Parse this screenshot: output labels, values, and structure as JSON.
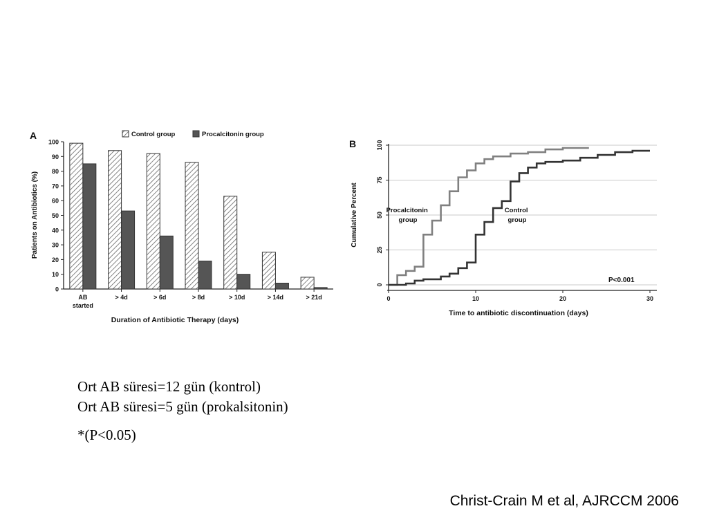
{
  "chart_data": [
    {
      "panel_label": "A",
      "type": "bar",
      "title": "",
      "xlabel": "Duration of Antibiotic Therapy (days)",
      "ylabel": "Patients on Antibiotics (%)",
      "ylim": [
        0,
        100
      ],
      "yticks": [
        0,
        10,
        20,
        30,
        40,
        50,
        60,
        70,
        80,
        90,
        100
      ],
      "categories": [
        "AB started",
        "> 4d",
        "> 6d",
        "> 8d",
        "> 10d",
        "> 14d",
        "> 21d"
      ],
      "legend_position": "top",
      "series": [
        {
          "name": "Control group",
          "pattern": "hatched",
          "color": "#ffffff",
          "values": [
            99,
            94,
            92,
            86,
            63,
            25,
            8
          ]
        },
        {
          "name": "Procalcitonin group",
          "pattern": "solid",
          "color": "#555555",
          "values": [
            85,
            53,
            36,
            19,
            10,
            4,
            1
          ]
        }
      ]
    },
    {
      "panel_label": "B",
      "type": "line",
      "title": "",
      "xlabel": "Time to antibiotic discontinuation (days)",
      "ylabel": "Cumulative Percent",
      "xlim": [
        0,
        30
      ],
      "ylim": [
        0,
        100
      ],
      "xticks": [
        0,
        10,
        20,
        30
      ],
      "yticks": [
        0,
        25,
        50,
        75,
        100
      ],
      "grid": true,
      "annotation": "P<0.001",
      "series": [
        {
          "name": "Procalcitonin group",
          "label_lines": [
            "Procalcitonin",
            "group"
          ],
          "color": "#808080",
          "points": [
            [
              0,
              0
            ],
            [
              1,
              0
            ],
            [
              1,
              7
            ],
            [
              2,
              7
            ],
            [
              2,
              10
            ],
            [
              3,
              10
            ],
            [
              3,
              13
            ],
            [
              4,
              13
            ],
            [
              4,
              36
            ],
            [
              5,
              36
            ],
            [
              5,
              46
            ],
            [
              6,
              46
            ],
            [
              6,
              57
            ],
            [
              7,
              57
            ],
            [
              7,
              67
            ],
            [
              8,
              67
            ],
            [
              8,
              77
            ],
            [
              9,
              77
            ],
            [
              9,
              82
            ],
            [
              10,
              82
            ],
            [
              10,
              87
            ],
            [
              11,
              87
            ],
            [
              11,
              90
            ],
            [
              12,
              90
            ],
            [
              12,
              92
            ],
            [
              14,
              92
            ],
            [
              14,
              94
            ],
            [
              16,
              94
            ],
            [
              16,
              95
            ],
            [
              18,
              95
            ],
            [
              18,
              97
            ],
            [
              20,
              97
            ],
            [
              20,
              98
            ],
            [
              23,
              98
            ]
          ]
        },
        {
          "name": "Control group",
          "label_lines": [
            "Control",
            "group"
          ],
          "color": "#333333",
          "points": [
            [
              0,
              0
            ],
            [
              2,
              0
            ],
            [
              2,
              1
            ],
            [
              3,
              1
            ],
            [
              3,
              3
            ],
            [
              4,
              3
            ],
            [
              4,
              4
            ],
            [
              6,
              4
            ],
            [
              6,
              6
            ],
            [
              7,
              6
            ],
            [
              7,
              8
            ],
            [
              8,
              8
            ],
            [
              8,
              12
            ],
            [
              9,
              12
            ],
            [
              9,
              16
            ],
            [
              10,
              16
            ],
            [
              10,
              36
            ],
            [
              11,
              36
            ],
            [
              11,
              45
            ],
            [
              12,
              45
            ],
            [
              12,
              55
            ],
            [
              13,
              55
            ],
            [
              13,
              60
            ],
            [
              14,
              60
            ],
            [
              14,
              74
            ],
            [
              15,
              74
            ],
            [
              15,
              80
            ],
            [
              16,
              80
            ],
            [
              16,
              84
            ],
            [
              17,
              84
            ],
            [
              17,
              87
            ],
            [
              18,
              87
            ],
            [
              18,
              88
            ],
            [
              20,
              88
            ],
            [
              20,
              89
            ],
            [
              22,
              89
            ],
            [
              22,
              91
            ],
            [
              24,
              91
            ],
            [
              24,
              93
            ],
            [
              26,
              93
            ],
            [
              26,
              95
            ],
            [
              28,
              95
            ],
            [
              28,
              96
            ],
            [
              30,
              96
            ]
          ]
        }
      ]
    }
  ],
  "notes": {
    "line1": "Ort AB süresi=12 gün (kontrol)",
    "line2": "Ort AB süresi=5 gün (prokalsitonin)",
    "line3": "*(P<0.05)"
  },
  "citation": "Christ-Crain M et al, AJRCCM 2006"
}
